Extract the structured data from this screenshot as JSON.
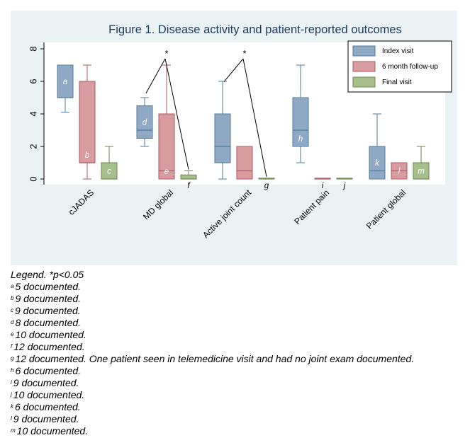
{
  "chart_data": {
    "type": "box",
    "title": "Figure 1. Disease activity and patient-reported outcomes",
    "categories": [
      "cJADAS",
      "MD global",
      "Active joint count",
      "Patient pain",
      "Patient global"
    ],
    "ylim": [
      0,
      8
    ],
    "yticks": [
      0,
      2,
      4,
      6,
      8
    ],
    "grid": false,
    "legend_position": "top-right",
    "series": [
      {
        "name": "Index visit",
        "color": "#4f7b9c",
        "fill": "#8fa9c4",
        "boxes": [
          {
            "min": 4.1,
            "q1": 5,
            "median": 5,
            "q3": 7,
            "max": 7,
            "label": "a"
          },
          {
            "min": 2,
            "q1": 2.5,
            "median": 3,
            "q3": 4.5,
            "max": 5,
            "label": "d"
          },
          {
            "min": 0,
            "q1": 1,
            "median": 2,
            "q3": 4,
            "max": 6,
            "label": null
          },
          {
            "min": 1,
            "q1": 2,
            "median": 3,
            "q3": 5,
            "max": 7,
            "label": "h"
          },
          {
            "min": 0,
            "q1": 0,
            "median": 0.5,
            "q3": 2,
            "max": 4,
            "label": "k"
          }
        ]
      },
      {
        "name": "6 month follow-up",
        "color": "#b2585e",
        "fill": "#d89ca0",
        "boxes": [
          {
            "min": 0,
            "q1": 1,
            "median": 1,
            "q3": 6,
            "max": 7,
            "label": "b"
          },
          {
            "min": 0,
            "q1": 0,
            "median": 0.5,
            "q3": 4,
            "max": 7,
            "label": "e"
          },
          {
            "min": 0,
            "q1": 0,
            "median": 0.5,
            "q3": 2,
            "max": 2,
            "label": null
          },
          {
            "min": 0,
            "q1": 0,
            "median": 0,
            "q3": 0,
            "max": 0,
            "label": "i"
          },
          {
            "min": 0,
            "q1": 0,
            "median": 0.5,
            "q3": 1,
            "max": 1,
            "label": "l"
          }
        ]
      },
      {
        "name": "Final visit",
        "color": "#6b8a4e",
        "fill": "#a7bf8c",
        "boxes": [
          {
            "min": 0,
            "q1": 0,
            "median": 0,
            "q3": 1,
            "max": 2,
            "label": "c"
          },
          {
            "min": 0,
            "q1": 0,
            "median": 0,
            "q3": 0.25,
            "max": 0.5,
            "label": "f"
          },
          {
            "min": 0,
            "q1": 0,
            "median": 0,
            "q3": 0,
            "max": 0,
            "label": "g"
          },
          {
            "min": 0,
            "q1": 0,
            "median": 0,
            "q3": 0,
            "max": 0,
            "label": "j"
          },
          {
            "min": 0,
            "q1": 0,
            "median": 0,
            "q3": 1,
            "max": 2,
            "label": "m"
          }
        ]
      }
    ],
    "significance": [
      {
        "category": "MD global",
        "symbol": "*"
      },
      {
        "category": "Active joint count",
        "symbol": "*"
      }
    ]
  },
  "legend_notes": [
    {
      "sup": "",
      "text": "Legend. *p<0.05"
    },
    {
      "sup": "a",
      "text": "5 documented."
    },
    {
      "sup": "b",
      "text": "9 documented."
    },
    {
      "sup": "c",
      "text": "9 documented."
    },
    {
      "sup": "d",
      "text": "8 documented."
    },
    {
      "sup": "e",
      "text": "10 documented."
    },
    {
      "sup": "f",
      "text": "12 documented."
    },
    {
      "sup": "g",
      "text": "12 documented. One patient seen in telemedicine visit and had no joint exam documented."
    },
    {
      "sup": "h",
      "text": "6 documented."
    },
    {
      "sup": "i",
      "text": "9 documented."
    },
    {
      "sup": "j",
      "text": "10 documented."
    },
    {
      "sup": "k",
      "text": "6 documented."
    },
    {
      "sup": "l",
      "text": "9 documented."
    },
    {
      "sup": "m",
      "text": "10 documented."
    }
  ]
}
